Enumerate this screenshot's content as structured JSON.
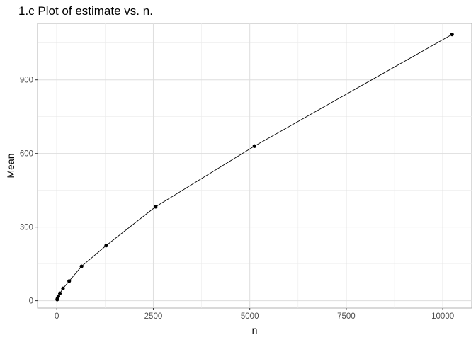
{
  "chart_data": {
    "type": "line",
    "title": "1.c Plot of estimate vs. n.",
    "xlabel": "n",
    "ylabel": "Mean",
    "xlim": [
      -500,
      10750
    ],
    "ylim": [
      -30,
      1130
    ],
    "x_ticks": [
      0,
      2500,
      5000,
      7500,
      10000
    ],
    "y_ticks": [
      0,
      300,
      600,
      900
    ],
    "x_tick_labels": [
      "0",
      "2500",
      "5000",
      "7500",
      "10000"
    ],
    "y_tick_labels": [
      "0",
      "300",
      "600",
      "900"
    ],
    "grid": true,
    "legend": "none",
    "markers": true,
    "line_color": "#000000",
    "x": [
      10,
      20,
      40,
      80,
      160,
      320,
      640,
      1280,
      2560,
      5120,
      10240
    ],
    "y": [
      5,
      10,
      18,
      30,
      50,
      80,
      140,
      225,
      383,
      630,
      1085
    ]
  }
}
